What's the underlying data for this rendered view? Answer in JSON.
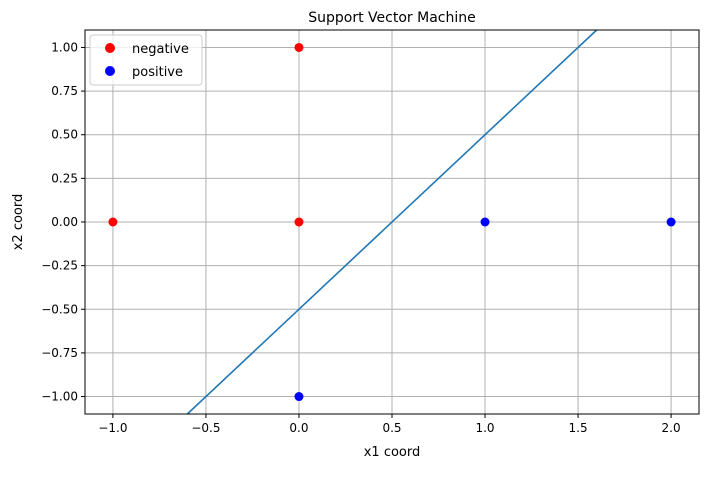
{
  "chart_data": {
    "type": "scatter",
    "title": "Support Vector Machine",
    "xlabel": "x1 coord",
    "ylabel": "x2 coord",
    "xlim": [
      -1.15,
      2.15
    ],
    "ylim": [
      -1.1,
      1.1
    ],
    "grid": true,
    "legend_position": "top-left",
    "x_ticks": [
      -1.0,
      -0.5,
      0.0,
      0.5,
      1.0,
      1.5,
      2.0
    ],
    "x_tick_labels": [
      "−1.0",
      "−0.5",
      "0.0",
      "0.5",
      "1.0",
      "1.5",
      "2.0"
    ],
    "y_ticks": [
      -1.0,
      -0.75,
      -0.5,
      -0.25,
      0.0,
      0.25,
      0.5,
      0.75,
      1.0
    ],
    "y_tick_labels": [
      "−1.00",
      "−0.75",
      "−0.50",
      "−0.25",
      "0.00",
      "0.25",
      "0.50",
      "0.75",
      "1.00"
    ],
    "series": [
      {
        "name": "negative",
        "color": "#ff0000",
        "points": [
          [
            -1,
            0
          ],
          [
            0,
            0
          ],
          [
            0,
            1
          ]
        ]
      },
      {
        "name": "positive",
        "color": "#0000ff",
        "points": [
          [
            1,
            0
          ],
          [
            2,
            0
          ],
          [
            0,
            -1
          ]
        ]
      }
    ],
    "decision_boundary": {
      "color": "#1f77b4",
      "slope": 1,
      "intercept": -0.5
    }
  }
}
